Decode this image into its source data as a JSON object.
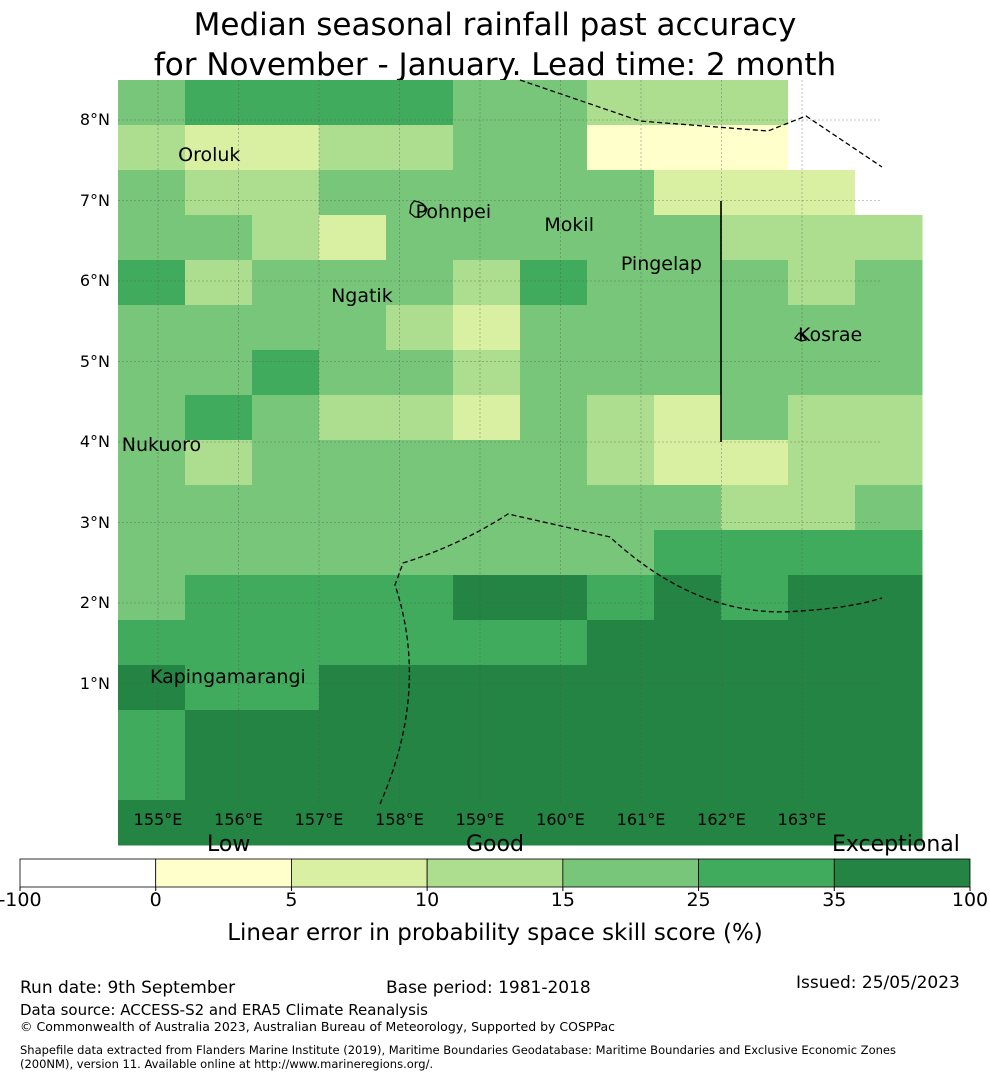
{
  "title_line1": "Median seasonal rainfall past accuracy",
  "title_line2": "for November - January. Lead time: 2 month",
  "map": {
    "lat_labels": [
      "8°N",
      "7°N",
      "6°N",
      "5°N",
      "4°N",
      "3°N",
      "2°N",
      "1°N"
    ],
    "lon_labels": [
      "155°E",
      "156°E",
      "157°E",
      "158°E",
      "159°E",
      "160°E",
      "161°E",
      "162°E",
      "163°E"
    ],
    "places": [
      {
        "name": "Oroluk",
        "lon": 155.25,
        "lat": 7.55
      },
      {
        "name": "Pohnpei",
        "lon": 158.2,
        "lat": 6.85
      },
      {
        "name": "Mokil",
        "lon": 159.8,
        "lat": 6.68
      },
      {
        "name": "Pingelap",
        "lon": 160.75,
        "lat": 6.2
      },
      {
        "name": "Ngatik",
        "lon": 157.15,
        "lat": 5.8
      },
      {
        "name": "Kosrae",
        "lon": 162.95,
        "lat": 5.32
      },
      {
        "name": "Nukuoro",
        "lon": 154.55,
        "lat": 3.95
      },
      {
        "name": "Kapingamarangi",
        "lon": 154.9,
        "lat": 1.07
      }
    ]
  },
  "colorbar": {
    "category_labels": [
      "Low",
      "Good",
      "Exceptional"
    ],
    "ticks": [
      "-100",
      "0",
      "5",
      "10",
      "15",
      "25",
      "35",
      "100"
    ],
    "colors": [
      "#ffffff",
      "#ffffcc",
      "#d9f0a3",
      "#addd8e",
      "#78c679",
      "#41ab5d",
      "#238443"
    ],
    "title": "Linear error in probability space skill score (%)"
  },
  "footer": {
    "run_date": "Run date: 9th September",
    "base_period": "Base period: 1981-2018",
    "issued": "Issued: 25/05/2023",
    "data_source": "Data source: ACCESS-S2 and ERA5 Climate Reanalysis",
    "copyright": "© Commonwealth of Australia 2023, Australian Bureau of Meteorology, Supported by COSPPac",
    "shapefile1": "Shapefile data extracted from Flanders Marine Institute (2019), Maritime Boundaries Geodatabase: Maritime Boundaries and Exclusive Economic Zones",
    "shapefile2": "(200NM), version 11. Available online at http://www.marineregions.org/."
  }
}
